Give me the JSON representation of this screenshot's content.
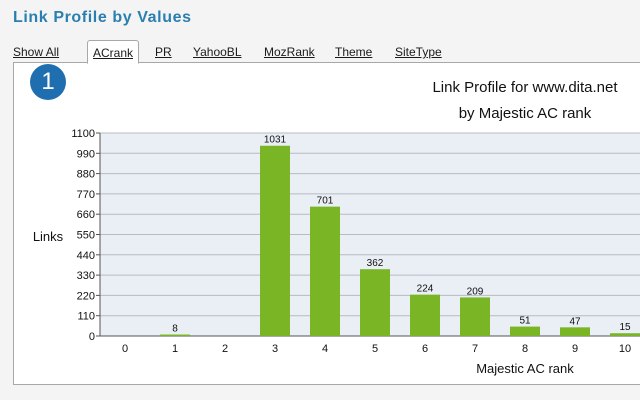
{
  "page": {
    "title": "Link Profile by Values"
  },
  "tabs": [
    {
      "label": "Show All"
    },
    {
      "label": "ACrank",
      "active": true
    },
    {
      "label": "PR"
    },
    {
      "label": "YahooBL"
    },
    {
      "label": "MozRank"
    },
    {
      "label": "Theme"
    },
    {
      "label": "SiteType"
    }
  ],
  "badge": {
    "number": "1",
    "color": "#1f6fb0"
  },
  "chart_data": {
    "type": "bar",
    "title": "Link Profile for www.dita.net",
    "subtitle": "by Majestic AC rank",
    "xlabel": "Majestic AC rank",
    "ylabel": "Links",
    "categories": [
      "0",
      "1",
      "2",
      "3",
      "4",
      "5",
      "6",
      "7",
      "8",
      "9",
      "10"
    ],
    "values": [
      0,
      8,
      0,
      1031,
      701,
      362,
      224,
      209,
      51,
      47,
      15
    ],
    "data_labels": [
      "",
      "8",
      "",
      "1031",
      "701",
      "362",
      "224",
      "209",
      "51",
      "47",
      "15"
    ],
    "ylim": [
      0,
      1100
    ],
    "yticks": [
      "0",
      "110",
      "220",
      "330",
      "440",
      "550",
      "660",
      "770",
      "880",
      "990",
      "1100"
    ],
    "grid": true,
    "bar_color": "#7ab526",
    "plot_background": "#e9eff5"
  }
}
